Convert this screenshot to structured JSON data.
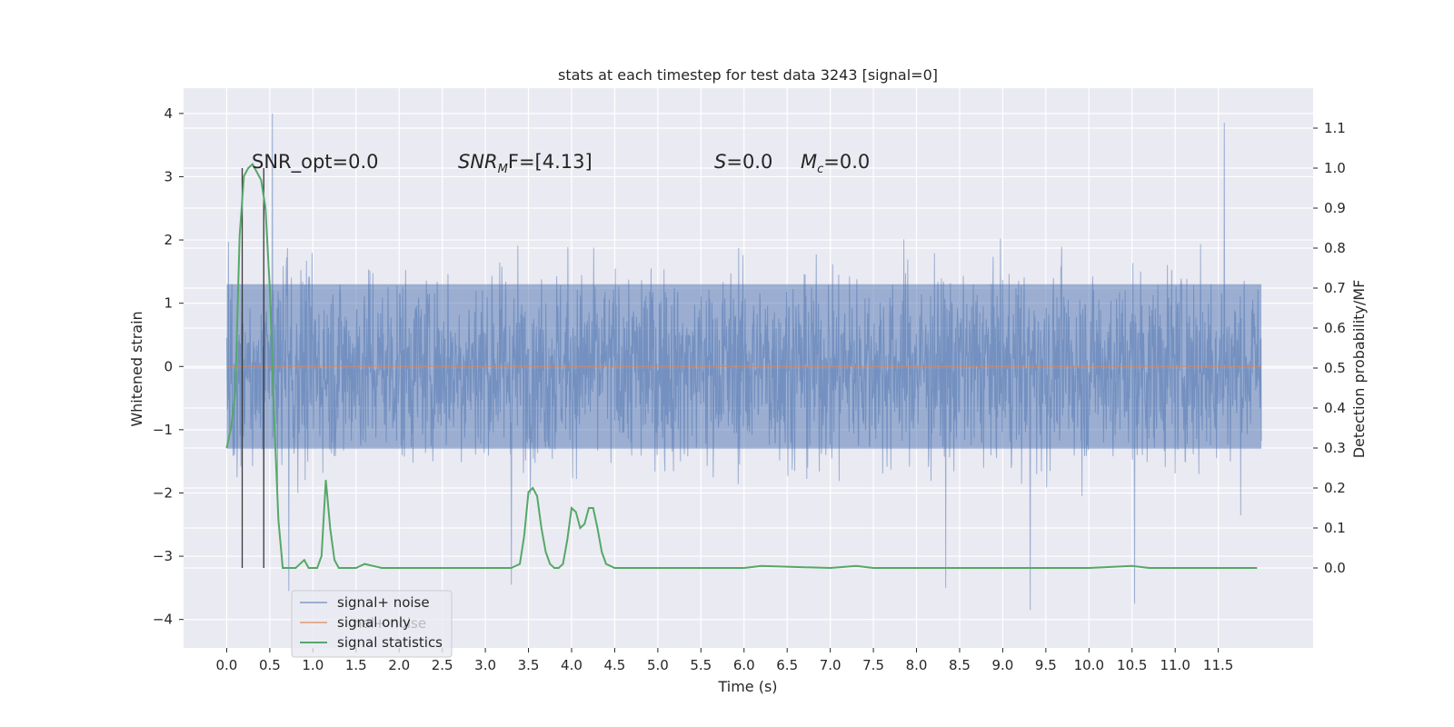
{
  "chart_data": {
    "type": "line",
    "title": "stats at each timestep for test data 3243 [signal=0]",
    "xlabel": "Time (s)",
    "ylabel": "Whitened strain",
    "y2label": "Detection probability/MF",
    "xlim": [
      -0.5,
      12.6
    ],
    "ylim": [
      -4.45,
      4.4
    ],
    "y2lim": [
      -0.2,
      1.2
    ],
    "x_ticks": [
      0.0,
      0.5,
      1.0,
      1.5,
      2.0,
      2.5,
      3.0,
      3.5,
      4.0,
      4.5,
      5.0,
      5.5,
      6.0,
      6.5,
      7.0,
      7.5,
      8.0,
      8.5,
      9.0,
      9.5,
      10.0,
      10.5,
      11.0,
      11.5
    ],
    "x_tick_labels": [
      "0.0",
      "0.5",
      "1.0",
      "1.5",
      "2.0",
      "2.5",
      "3.0",
      "3.5",
      "4.0",
      "4.5",
      "5.0",
      "5.5",
      "6.0",
      "6.5",
      "7.0",
      "7.5",
      "8.0",
      "8.5",
      "9.0",
      "9.5",
      "10.0",
      "10.5",
      "11.0",
      "11.5"
    ],
    "y_ticks": [
      -4,
      -3,
      -2,
      -1,
      0,
      1,
      2,
      3,
      4
    ],
    "y_tick_labels": [
      "−4",
      "−3",
      "−2",
      "−1",
      "0",
      "1",
      "2",
      "3",
      "4"
    ],
    "y2_ticks": [
      0.0,
      0.1,
      0.2,
      0.3,
      0.4,
      0.5,
      0.6,
      0.7,
      0.8,
      0.9,
      1.0,
      1.1
    ],
    "y2_tick_labels": [
      "0.0",
      "0.1",
      "0.2",
      "0.3",
      "0.4",
      "0.5",
      "0.6",
      "0.7",
      "0.8",
      "0.9",
      "1.0",
      "1.1"
    ],
    "grid": true,
    "legend_position": "lower-left",
    "colors": {
      "background": "#eaeaf2",
      "grid": "#ffffff",
      "noise": "#4c72b0",
      "signal": "#dd8452",
      "statistics": "#55a868",
      "marker": "#3a3a3a"
    },
    "series": [
      {
        "name": "signal+ noise",
        "axis": "left",
        "x_range": [
          0.0,
          12.0
        ],
        "sample_count": 2400,
        "amplitude_envelope": {
          "max": 4.0,
          "typical_upper": 2.3,
          "typical_lower": -2.3,
          "solid_band": [
            -1.3,
            1.3
          ]
        },
        "notable_peaks": [
          {
            "x": 0.53,
            "y": 4.0
          },
          {
            "x": 11.57,
            "y": 3.85
          },
          {
            "x": 0.72,
            "y": -3.55
          },
          {
            "x": 9.32,
            "y": -3.85
          },
          {
            "x": 10.53,
            "y": -3.75
          },
          {
            "x": 8.34,
            "y": -3.5
          },
          {
            "x": 3.3,
            "y": -3.45
          }
        ]
      },
      {
        "name": "signal only",
        "axis": "left",
        "x": [
          0.0,
          12.0
        ],
        "y": [
          0.0,
          0.0
        ]
      },
      {
        "name": "signal statistics",
        "axis": "right",
        "x": [
          0.0,
          0.05,
          0.1,
          0.15,
          0.2,
          0.25,
          0.3,
          0.35,
          0.4,
          0.45,
          0.5,
          0.55,
          0.6,
          0.65,
          0.7,
          0.75,
          0.8,
          0.9,
          0.95,
          1.0,
          1.05,
          1.1,
          1.15,
          1.2,
          1.25,
          1.3,
          1.35,
          1.4,
          1.45,
          1.5,
          1.6,
          1.7,
          1.8,
          1.9,
          2.0,
          2.5,
          3.0,
          3.3,
          3.4,
          3.45,
          3.5,
          3.55,
          3.6,
          3.65,
          3.7,
          3.75,
          3.8,
          3.85,
          3.9,
          3.95,
          4.0,
          4.05,
          4.1,
          4.15,
          4.2,
          4.25,
          4.3,
          4.35,
          4.4,
          4.45,
          4.5,
          4.55,
          4.6,
          4.65,
          4.7,
          4.75,
          4.8,
          4.9,
          5.0,
          6.0,
          6.2,
          7.0,
          7.3,
          7.5,
          9.0,
          10.0,
          10.5,
          10.7,
          11.0,
          11.5,
          11.9,
          11.95
        ],
        "y": [
          0.3,
          0.35,
          0.44,
          0.83,
          0.98,
          1.0,
          1.01,
          0.99,
          0.97,
          0.9,
          0.7,
          0.38,
          0.12,
          0.0,
          0.0,
          0.0,
          0.0,
          0.02,
          0.0,
          0.0,
          0.0,
          0.03,
          0.22,
          0.1,
          0.02,
          0.0,
          0.0,
          0.0,
          0.0,
          0.0,
          0.01,
          0.005,
          0.0,
          0.0,
          0.0,
          0.0,
          0.0,
          0.0,
          0.01,
          0.08,
          0.19,
          0.2,
          0.18,
          0.1,
          0.04,
          0.01,
          0.0,
          0.0,
          0.01,
          0.07,
          0.15,
          0.14,
          0.1,
          0.11,
          0.15,
          0.15,
          0.1,
          0.04,
          0.01,
          0.005,
          0.0,
          0.0,
          0.0,
          0.0,
          0.0,
          0.0,
          0.0,
          0.0,
          0.0,
          0.0,
          0.005,
          0.0,
          0.005,
          0.0,
          0.0,
          0.0,
          0.005,
          0.0,
          0.0,
          0.0,
          0.0,
          0.0
        ]
      }
    ],
    "vertical_markers": [
      0.18,
      0.43
    ],
    "annotations": {
      "snr_opt": "SNR_opt=0.0",
      "snr_mf_prefix": "SNR",
      "snr_mf_sub": "M",
      "snr_mf_suffix": "F=[4.13]",
      "s_var": "S",
      "s_value": "=0.0",
      "mc_var": "M",
      "mc_sub": "c",
      "mc_value": "=0.0"
    },
    "legend": [
      {
        "label": "signal+ noise",
        "color": "#4c72b0",
        "opacity": 0.5
      },
      {
        "label": "signal only",
        "color": "#dd8452",
        "opacity": 0.6
      },
      {
        "label": "signal statistics",
        "color": "#55a868",
        "opacity": 1.0
      }
    ],
    "legend_ghost_text": "nal+ noise"
  }
}
